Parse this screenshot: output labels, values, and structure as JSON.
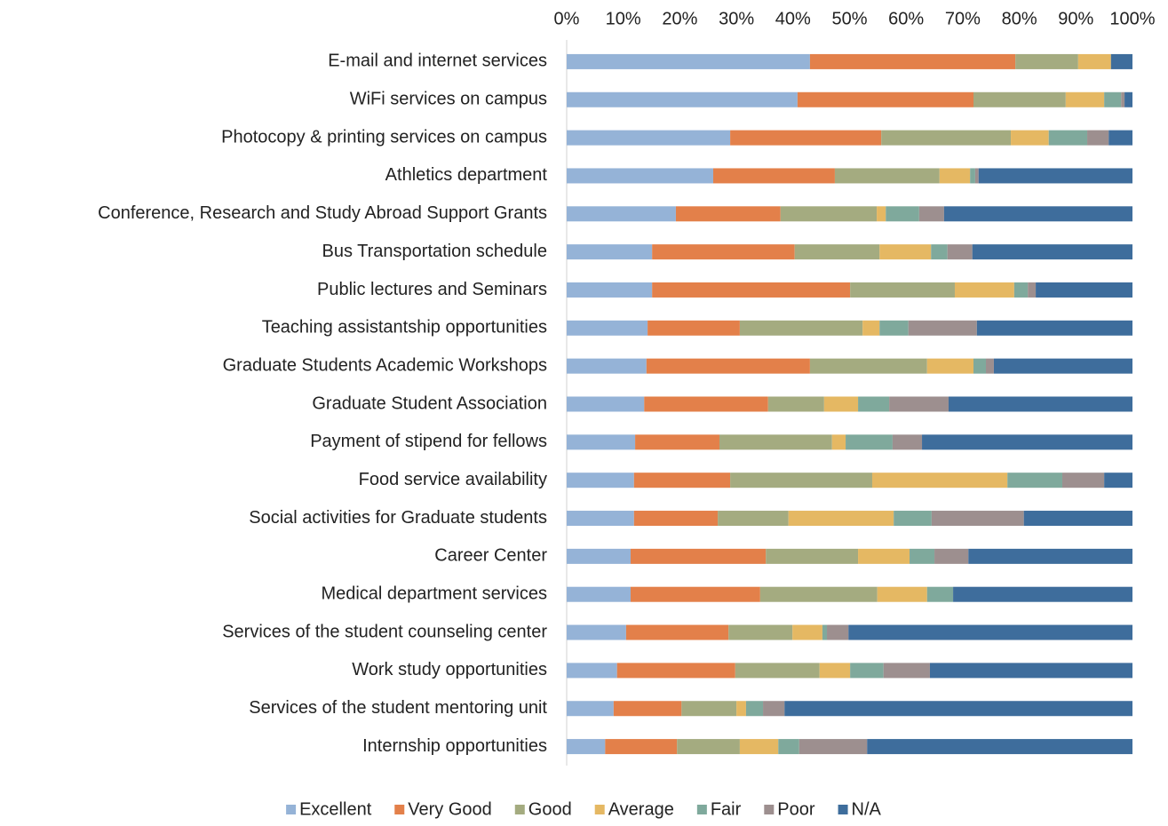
{
  "chart_data": {
    "type": "stacked_barh",
    "categories": [
      "E-mail and internet services",
      "WiFi  services on campus",
      "Photocopy & printing services on campus",
      "Athletics department",
      "Conference, Research and Study Abroad Support Grants",
      "Bus Transportation schedule",
      "Public lectures and Seminars",
      "Teaching assistantship opportunities",
      "Graduate Students Academic Workshops",
      "Graduate Student Association",
      "Payment of stipend for fellows",
      "Food service availability",
      "Social activities for Graduate students",
      "Career Center",
      "Medical department services",
      "Services of the student counseling center",
      "Work study opportunities",
      "Services of the student mentoring unit",
      "Internship opportunities"
    ],
    "series": [
      {
        "name": "Excellent",
        "color": "#95b3d7",
        "values": [
          43.0,
          40.8,
          28.9,
          25.9,
          19.3,
          15.1,
          15.1,
          14.3,
          14.1,
          13.7,
          12.1,
          11.9,
          11.9,
          11.3,
          11.3,
          10.5,
          8.9,
          8.3,
          6.8
        ]
      },
      {
        "name": "Very Good",
        "color": "#e3804a",
        "values": [
          36.3,
          31.1,
          26.7,
          21.5,
          18.5,
          25.2,
          35.0,
          16.3,
          28.9,
          21.9,
          14.9,
          17.0,
          14.8,
          23.9,
          22.9,
          18.1,
          20.9,
          12.0,
          12.7
        ]
      },
      {
        "name": "Good",
        "color": "#a4ab80",
        "values": [
          11.1,
          16.3,
          22.9,
          18.5,
          17.0,
          15.0,
          18.5,
          21.7,
          20.7,
          9.9,
          19.9,
          25.1,
          12.5,
          16.3,
          20.7,
          11.3,
          14.9,
          9.7,
          11.1
        ]
      },
      {
        "name": "Average",
        "color": "#e5b863",
        "values": [
          5.8,
          6.8,
          6.7,
          5.4,
          1.6,
          9.1,
          10.5,
          3.0,
          8.2,
          6.0,
          2.4,
          23.9,
          18.6,
          9.1,
          8.8,
          5.3,
          5.4,
          1.7,
          6.8
        ]
      },
      {
        "name": "Fair",
        "color": "#7fa99c",
        "values": [
          0,
          3.0,
          6.8,
          0.9,
          5.9,
          2.9,
          2.4,
          5.1,
          2.2,
          5.5,
          8.3,
          9.7,
          6.7,
          4.4,
          4.6,
          0.8,
          5.9,
          3.0,
          3.7
        ]
      },
      {
        "name": "Poor",
        "color": "#9d8f8f",
        "values": [
          0,
          0.6,
          3.8,
          0.6,
          4.4,
          4.4,
          1.4,
          12.1,
          1.4,
          10.5,
          5.2,
          7.4,
          16.3,
          6.0,
          0,
          3.8,
          8.2,
          3.8,
          12.0
        ]
      },
      {
        "name": "N/A",
        "color": "#3e6d9c",
        "values": [
          3.8,
          1.4,
          4.2,
          27.2,
          33.3,
          28.3,
          17.1,
          27.5,
          24.5,
          32.5,
          37.2,
          5.0,
          19.2,
          29.0,
          31.7,
          50.2,
          35.8,
          61.5,
          46.9
        ]
      }
    ],
    "xlim": [
      0,
      100
    ],
    "xticks": [
      {
        "value": 0,
        "label": "0%"
      },
      {
        "value": 10,
        "label": "10%"
      },
      {
        "value": 20,
        "label": "20%"
      },
      {
        "value": 30,
        "label": "30%"
      },
      {
        "value": 40,
        "label": "40%"
      },
      {
        "value": 50,
        "label": "50%"
      },
      {
        "value": 60,
        "label": "60%"
      },
      {
        "value": 70,
        "label": "70%"
      },
      {
        "value": 80,
        "label": "80%"
      },
      {
        "value": 90,
        "label": "90%"
      },
      {
        "value": 100,
        "label": "100%"
      }
    ],
    "grid": false,
    "legend": "bottom"
  }
}
